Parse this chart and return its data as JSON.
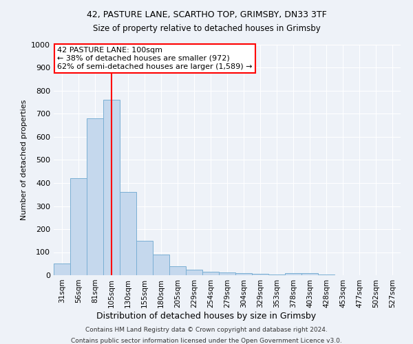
{
  "title_line1": "42, PASTURE LANE, SCARTHO TOP, GRIMSBY, DN33 3TF",
  "title_line2": "Size of property relative to detached houses in Grimsby",
  "xlabel": "Distribution of detached houses by size in Grimsby",
  "ylabel": "Number of detached properties",
  "categories": [
    "31sqm",
    "56sqm",
    "81sqm",
    "105sqm",
    "130sqm",
    "155sqm",
    "180sqm",
    "205sqm",
    "229sqm",
    "254sqm",
    "279sqm",
    "304sqm",
    "329sqm",
    "353sqm",
    "378sqm",
    "403sqm",
    "428sqm",
    "453sqm",
    "477sqm",
    "502sqm",
    "527sqm"
  ],
  "values": [
    50,
    420,
    680,
    760,
    360,
    150,
    90,
    40,
    25,
    15,
    12,
    8,
    5,
    3,
    8,
    8,
    3,
    0,
    0,
    0,
    0
  ],
  "bar_color": "#c5d8ed",
  "bar_edge_color": "#7aafd4",
  "red_line_index": 3.5,
  "annotation_text_line1": "42 PASTURE LANE: 100sqm",
  "annotation_text_line2": "← 38% of detached houses are smaller (972)",
  "annotation_text_line3": "62% of semi-detached houses are larger (1,589) →",
  "ylim": [
    0,
    1000
  ],
  "yticks": [
    0,
    100,
    200,
    300,
    400,
    500,
    600,
    700,
    800,
    900,
    1000
  ],
  "footnote1": "Contains HM Land Registry data © Crown copyright and database right 2024.",
  "footnote2": "Contains public sector information licensed under the Open Government Licence v3.0.",
  "bg_color": "#eef2f8",
  "grid_color": "#ffffff"
}
